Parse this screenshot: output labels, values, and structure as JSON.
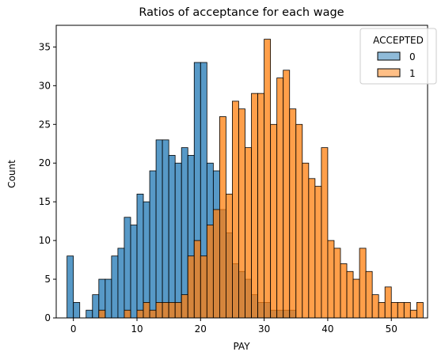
{
  "chart_data": {
    "type": "bar",
    "subtype": "overlaid-histogram",
    "title": "Ratios of acceptance for each wage",
    "xlabel": "PAY",
    "ylabel": "Count",
    "xlim": [
      -2.7,
      55.7
    ],
    "ylim": [
      0,
      37.8
    ],
    "xticks": [
      0,
      10,
      20,
      30,
      40,
      50
    ],
    "yticks": [
      0,
      5,
      10,
      15,
      20,
      25,
      30,
      35
    ],
    "bin_start": -1,
    "bin_width": 1,
    "legend": {
      "title": "ACCEPTED",
      "placement": "top-right"
    },
    "series": [
      {
        "name": "0",
        "color": "#1f77b4",
        "values": [
          8,
          2,
          0,
          1,
          3,
          5,
          5,
          8,
          9,
          13,
          12,
          16,
          15,
          19,
          23,
          23,
          21,
          20,
          22,
          21,
          33,
          33,
          20,
          19,
          14,
          11,
          7,
          6,
          5,
          3,
          2,
          2,
          1,
          1,
          1,
          1,
          0,
          0,
          0,
          0,
          0,
          0,
          0,
          0,
          0,
          0,
          0,
          0,
          0,
          0,
          0,
          0,
          0,
          0,
          0,
          0
        ]
      },
      {
        "name": "1",
        "color": "#ff7f0e",
        "values": [
          0,
          0,
          0,
          0,
          0,
          1,
          0,
          0,
          0,
          1,
          0,
          1,
          2,
          1,
          2,
          2,
          2,
          2,
          3,
          8,
          10,
          8,
          12,
          14,
          26,
          16,
          28,
          27,
          22,
          29,
          29,
          36,
          25,
          31,
          32,
          27,
          25,
          20,
          18,
          17,
          22,
          10,
          9,
          7,
          6,
          5,
          9,
          6,
          3,
          2,
          4,
          2,
          2,
          2,
          1,
          2
        ]
      }
    ]
  }
}
